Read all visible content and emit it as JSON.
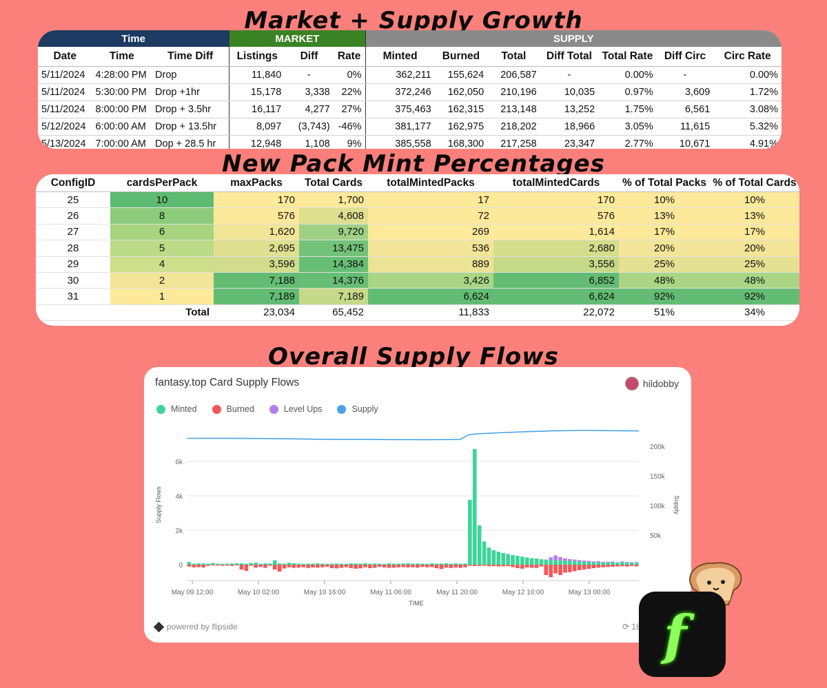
{
  "titles": {
    "growth": "Market + Supply Growth",
    "mint": "New Pack Mint Percentages",
    "flows": "Overall Supply Flows"
  },
  "colors": {
    "background": "#fb807b",
    "time_header": "#1d3a62",
    "market_header": "#3a8324",
    "supply_header": "#8a8a8a",
    "minted": "#3ed59a",
    "burned": "#f3575a",
    "level_ups": "#b37fe6",
    "supply": "#4aa3e8",
    "logo_green": "#8cff5c"
  },
  "growth_table": {
    "groups": [
      "Time",
      "MARKET",
      "SUPPLY"
    ],
    "headers": [
      "Date",
      "Time",
      "Time Diff",
      "Listings",
      "Diff",
      "Rate",
      "Minted",
      "Burned",
      "Total",
      "Diff Total",
      "Total Rate",
      "Diff Circ",
      "Circ Rate"
    ],
    "rows": [
      [
        "5/11/2024",
        "4:28:00 PM",
        "Drop",
        "11,840",
        "-",
        "0%",
        "362,211",
        "155,624",
        "206,587",
        "-",
        "0.00%",
        "-",
        "0.00%"
      ],
      [
        "5/11/2024",
        "5:30:00 PM",
        "Drop +1hr",
        "15,178",
        "3,338",
        "22%",
        "372,246",
        "162,050",
        "210,196",
        "10,035",
        "0.97%",
        "3,609",
        "1.72%"
      ],
      [
        "5/11/2024",
        "8:00:00 PM",
        "Drop + 3.5hr",
        "16,117",
        "4,277",
        "27%",
        "375,463",
        "162,315",
        "213,148",
        "13,252",
        "1.75%",
        "6,561",
        "3.08%"
      ],
      [
        "5/12/2024",
        "6:00:00 AM",
        "Drop + 13.5hr",
        "8,097",
        "(3,743)",
        "-46%",
        "381,177",
        "162,975",
        "218,202",
        "18,966",
        "3.05%",
        "11,615",
        "5.32%"
      ],
      [
        "5/13/2024",
        "7:00:00 AM",
        "Dop + 28.5 hr",
        "12,948",
        "1,108",
        "9%",
        "385,558",
        "168,300",
        "217,258",
        "23,347",
        "2.77%",
        "10,671",
        "4.91%"
      ]
    ]
  },
  "mint_table": {
    "headers": [
      "ConfigID",
      "cardsPerPack",
      "maxPacks",
      "Total Cards",
      "totalMintedPacks",
      "totalMintedCards",
      "% of Total Packs",
      "% of Total Cards"
    ],
    "rows": [
      [
        "25",
        "10",
        "170",
        "1,700",
        "17",
        "170",
        "10%",
        "10%"
      ],
      [
        "26",
        "8",
        "576",
        "4,608",
        "72",
        "576",
        "13%",
        "13%"
      ],
      [
        "27",
        "6",
        "1,620",
        "9,720",
        "269",
        "1,614",
        "17%",
        "17%"
      ],
      [
        "28",
        "5",
        "2,695",
        "13,475",
        "536",
        "2,680",
        "20%",
        "20%"
      ],
      [
        "29",
        "4",
        "3,596",
        "14,384",
        "889",
        "3,556",
        "25%",
        "25%"
      ],
      [
        "30",
        "2",
        "7,188",
        "14,376",
        "3,426",
        "6,852",
        "48%",
        "48%"
      ],
      [
        "31",
        "1",
        "7,189",
        "7,189",
        "6,624",
        "6,624",
        "92%",
        "92%"
      ]
    ],
    "heat": [
      [
        "#ffffff",
        "#5dba71",
        "#fde99a",
        "#fde99a",
        "#fde99a",
        "#fde99a",
        "#fde99a",
        "#fde99a"
      ],
      [
        "#ffffff",
        "#8ccb7b",
        "#fde99a",
        "#dfe08f",
        "#fde99a",
        "#fde99a",
        "#fde99a",
        "#fde99a"
      ],
      [
        "#ffffff",
        "#a6d47f",
        "#f3e597",
        "#9fd185",
        "#fde99a",
        "#fde99a",
        "#fbe899",
        "#fbe899"
      ],
      [
        "#ffffff",
        "#bcdb86",
        "#dfe08f",
        "#73c27a",
        "#f3e597",
        "#d3dd8c",
        "#f3e597",
        "#f3e597"
      ],
      [
        "#ffffff",
        "#cfde8a",
        "#d0dc8b",
        "#66be75",
        "#ece395",
        "#c6d988",
        "#e5e192",
        "#e5e192"
      ],
      [
        "#ffffff",
        "#f3e597",
        "#63bc73",
        "#66be75",
        "#a9d585",
        "#63bc73",
        "#a9d585",
        "#a9d585"
      ],
      [
        "#ffffff",
        "#fde99a",
        "#63bc73",
        "#c6d988",
        "#63bc73",
        "#63bc73",
        "#63bc73",
        "#63bc73"
      ]
    ],
    "total": {
      "label": "Total",
      "values": [
        "23,034",
        "65,452",
        "11,833",
        "22,072",
        "51%",
        "34%"
      ]
    }
  },
  "chart_card": {
    "title": "fantasy.top Card Supply Flows",
    "user": "hildobby",
    "powered_by": "powered by flipside",
    "age": "18 m",
    "legend": [
      "Minted",
      "Burned",
      "Level Ups",
      "Supply"
    ]
  },
  "chart_data": {
    "type": "bar",
    "xlabel": "TIME",
    "ylabel": "Supply Flows",
    "y2label": "Supply",
    "ylim": [
      -600,
      7800
    ],
    "y2lim": [
      0,
      236000
    ],
    "yticks": [
      "0",
      "2k",
      "4k",
      "6k"
    ],
    "y2ticks": [
      "50k",
      "100k",
      "150k",
      "200k"
    ],
    "xticks": [
      "May 09 12:00",
      "May 10 02:00",
      "May 10 16:00",
      "May 11 06:00",
      "May 11 20:00",
      "May 12 10:00",
      "May 13 00:00"
    ],
    "series": [
      {
        "name": "Minted",
        "values": [
          160,
          60,
          80,
          70,
          60,
          100,
          60,
          50,
          60,
          70,
          80,
          90,
          60,
          100,
          120,
          50,
          80,
          70,
          260,
          80,
          60,
          120,
          90,
          60,
          50,
          60,
          70,
          80,
          60,
          50,
          60,
          70,
          60,
          50,
          80,
          70,
          60,
          90,
          60,
          70,
          60,
          50,
          80,
          60,
          60,
          70,
          90,
          60,
          70,
          60,
          50,
          80,
          60,
          70,
          90,
          60,
          80,
          60,
          70,
          3770,
          6720,
          2280,
          1350,
          1000,
          840,
          760,
          680,
          620,
          560,
          520,
          470,
          420,
          380,
          360,
          320,
          300,
          280,
          260,
          250,
          240,
          220,
          210,
          180,
          170,
          160,
          140,
          150,
          130,
          120,
          140,
          110,
          150,
          120,
          100,
          120
        ]
      },
      {
        "name": "Burned",
        "values": [
          -110,
          -150,
          -140,
          -160,
          -60,
          -40,
          -50,
          -60,
          -50,
          -70,
          -40,
          -280,
          -360,
          -60,
          -170,
          -130,
          -180,
          -60,
          -280,
          -400,
          -220,
          -150,
          -180,
          -170,
          -150,
          -190,
          -160,
          -170,
          -150,
          -120,
          -200,
          -210,
          -180,
          -140,
          -190,
          -230,
          -210,
          -150,
          -200,
          -180,
          -120,
          -160,
          -180,
          -170,
          -150,
          -140,
          -160,
          -150,
          -170,
          -130,
          -150,
          -140,
          -200,
          -250,
          -170,
          -190,
          -160,
          -180,
          -150,
          -60,
          -80,
          -70,
          -60,
          -90,
          -80,
          -100,
          -90,
          -80,
          -140,
          -200,
          -230,
          -160,
          -180,
          -190,
          -100,
          -600,
          -720,
          -500,
          -600,
          -460,
          -430,
          -380,
          -320,
          -280,
          -240,
          -200,
          -170,
          -150,
          -130,
          -120,
          -100,
          -90,
          -110,
          -80,
          -100
        ]
      },
      {
        "name": "Level Ups",
        "values": [
          0,
          0,
          0,
          0,
          0,
          0,
          0,
          0,
          0,
          0,
          0,
          0,
          0,
          0,
          0,
          0,
          0,
          0,
          0,
          0,
          0,
          0,
          0,
          0,
          0,
          0,
          0,
          0,
          0,
          0,
          0,
          0,
          0,
          0,
          0,
          0,
          0,
          0,
          0,
          0,
          0,
          0,
          0,
          0,
          0,
          0,
          0,
          0,
          0,
          0,
          0,
          0,
          0,
          0,
          0,
          0,
          0,
          0,
          0,
          0,
          0,
          0,
          0,
          0,
          0,
          0,
          0,
          0,
          0,
          0,
          0,
          0,
          0,
          0,
          0,
          0,
          150,
          280,
          200,
          130,
          110,
          90,
          80,
          70,
          60,
          50,
          60,
          40,
          50,
          40,
          30,
          40,
          30,
          40,
          30
        ]
      },
      {
        "name": "Supply",
        "values": [
          [
            0,
            206500
          ],
          [
            8,
            206600
          ],
          [
            16,
            206300
          ],
          [
            22,
            205800
          ],
          [
            28,
            205200
          ],
          [
            36,
            204900
          ],
          [
            44,
            204700
          ],
          [
            52,
            204600
          ],
          [
            58,
            204800
          ],
          [
            60,
            212000
          ],
          [
            62,
            213200
          ],
          [
            66,
            214500
          ],
          [
            72,
            216200
          ],
          [
            78,
            217400
          ],
          [
            84,
            218000
          ],
          [
            90,
            217700
          ],
          [
            96,
            217300
          ]
        ]
      }
    ]
  }
}
